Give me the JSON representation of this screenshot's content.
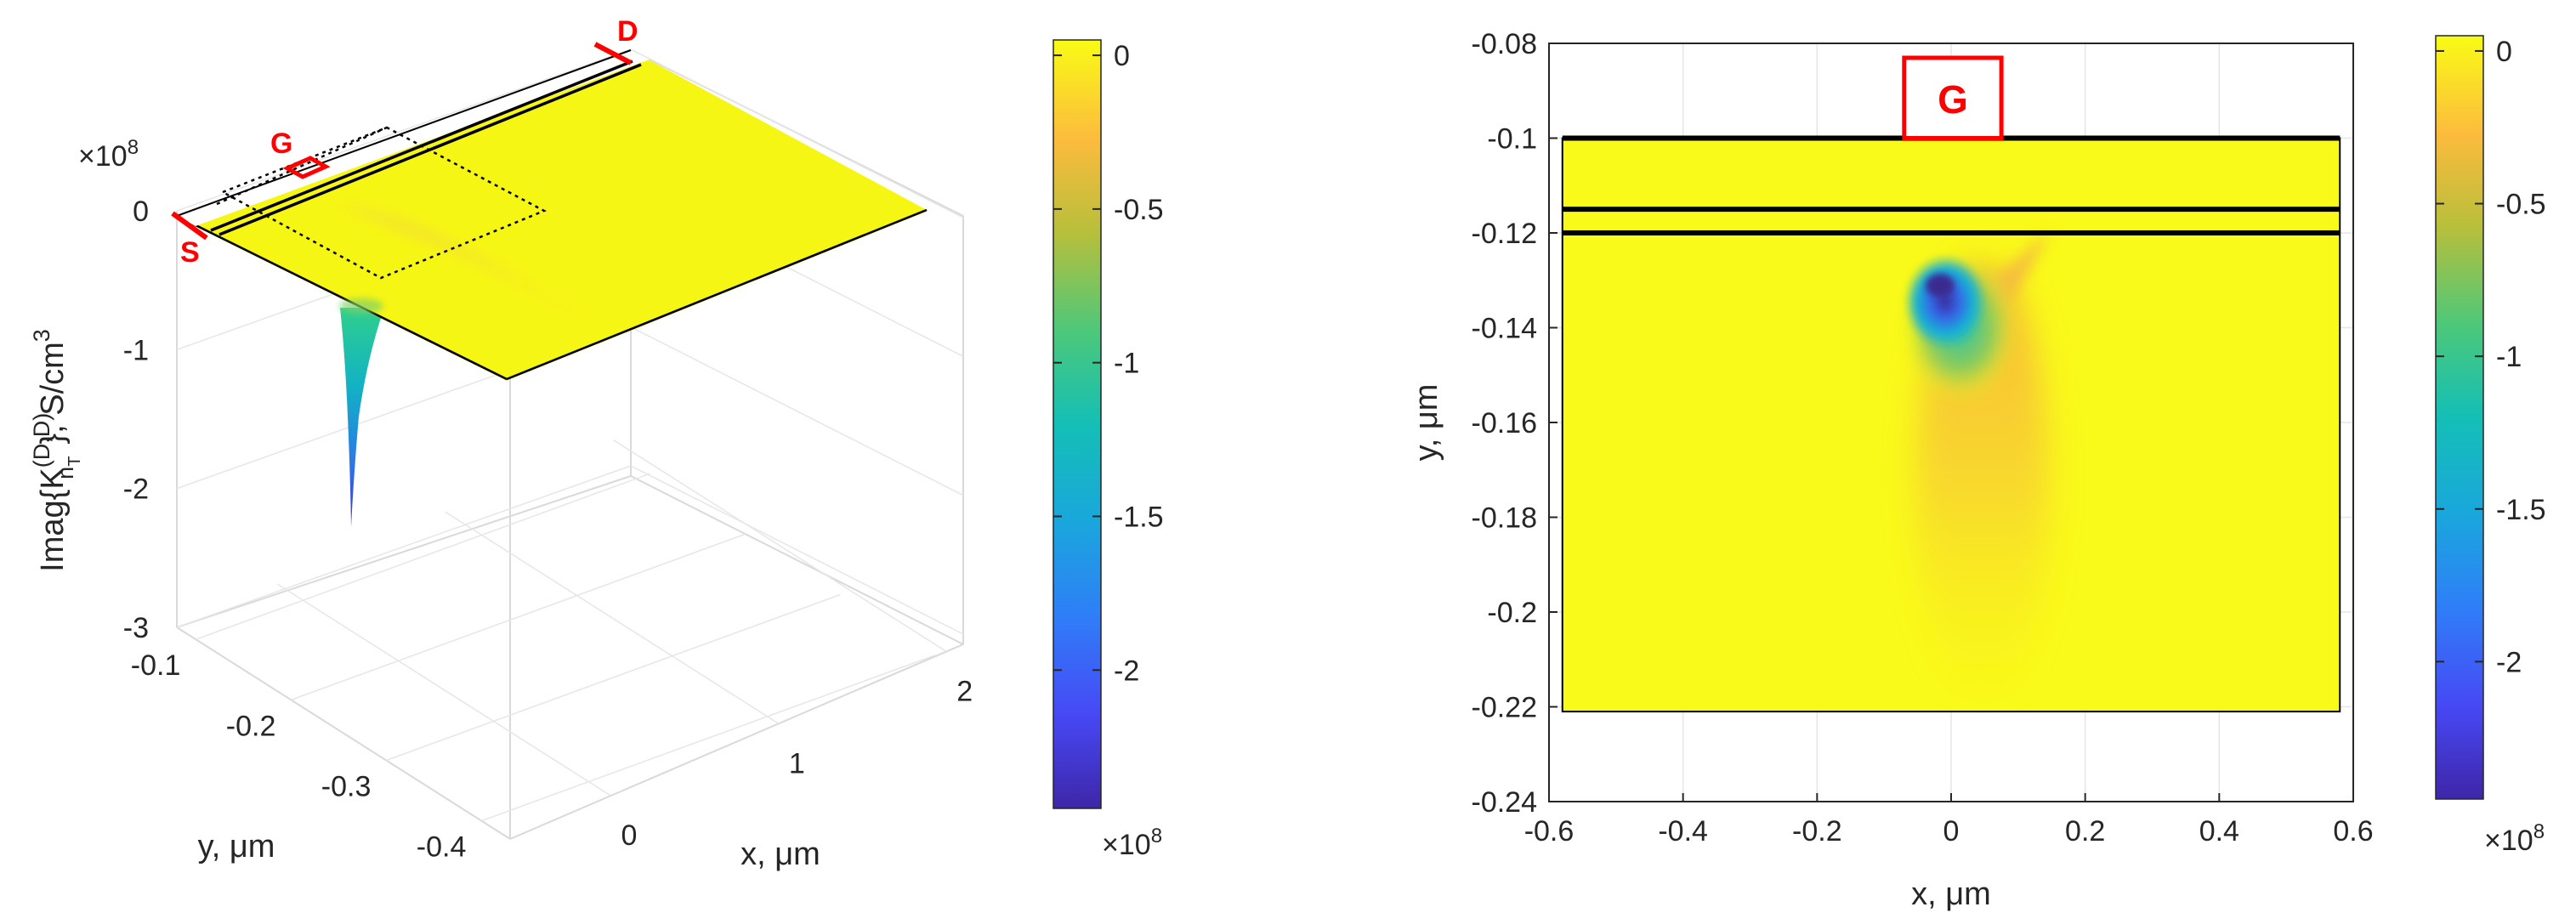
{
  "chart_data": [
    {
      "type": "surface",
      "view": "3d",
      "zlabel_parts": {
        "main": "Imag{K",
        "sup": "(D,D)",
        "sub": "n",
        "subsub": "T",
        "tail": "}, S/cm",
        "pow": "3"
      },
      "xlabel": "x, μm",
      "ylabel": "y, μm",
      "exponent_label": "×10",
      "exponent_power": "8",
      "xticks": [
        0,
        1,
        2
      ],
      "xtick_labels": [
        "0",
        "1",
        "2"
      ],
      "yticks": [
        -0.1,
        -0.2,
        -0.3,
        -0.4
      ],
      "ytick_labels": [
        "-0.1",
        "-0.2",
        "-0.3",
        "-0.4"
      ],
      "zticks": [
        0,
        -1,
        -2,
        -3
      ],
      "ztick_labels": [
        "0",
        "-1",
        "-2",
        "-3"
      ],
      "xlim": [
        -0.6,
        2.1
      ],
      "ylim": [
        -0.4,
        -0.08
      ],
      "zlim": [
        -3,
        0
      ],
      "min_value_x": 0.0,
      "min_value_y": -0.13,
      "min_value": -2.35,
      "terminal_labels": [
        "S",
        "G",
        "D"
      ],
      "colorbar": {
        "ticks": [
          0,
          -0.5,
          -1,
          -1.5,
          -2
        ],
        "tick_labels": [
          "0",
          "-0.5",
          "-1",
          "-1.5",
          "-2"
        ],
        "exponent_label": "×10",
        "exponent_power": "8",
        "limits": [
          -2.45,
          0.05
        ]
      }
    },
    {
      "type": "heatmap",
      "view": "2d",
      "xlabel": "x, μm",
      "ylabel": "y, μm",
      "xlim": [
        -0.6,
        0.6
      ],
      "ylim": [
        -0.24,
        -0.08
      ],
      "xticks": [
        -0.6,
        -0.4,
        -0.2,
        0,
        0.2,
        0.4,
        0.6
      ],
      "xtick_labels": [
        "-0.6",
        "-0.4",
        "-0.2",
        "0",
        "0.2",
        "0.4",
        "0.6"
      ],
      "yticks": [
        -0.08,
        -0.1,
        -0.12,
        -0.14,
        -0.16,
        -0.18,
        -0.2,
        -0.22,
        -0.24
      ],
      "ytick_labels": [
        "-0.08",
        "-0.1",
        "-0.12",
        "-0.14",
        "-0.16",
        "-0.18",
        "-0.2",
        "-0.22",
        "-0.24"
      ],
      "grid": true,
      "domain_x": [
        -0.58,
        0.58
      ],
      "domain_y": [
        -0.221,
        -0.1
      ],
      "layer_lines_y": [
        -0.1,
        -0.115,
        -0.12
      ],
      "gate_label": "G",
      "gate_x": [
        -0.07,
        0.075
      ],
      "hotspot": {
        "x": -0.02,
        "y": -0.132,
        "min_value": -2.4
      },
      "colorbar": {
        "ticks": [
          0,
          -0.5,
          -1,
          -1.5,
          -2
        ],
        "tick_labels": [
          "0",
          "-0.5",
          "-1",
          "-1.5",
          "-2"
        ],
        "exponent_label": "×10",
        "exponent_power": "8",
        "limits": [
          -2.45,
          0.05
        ]
      }
    }
  ]
}
